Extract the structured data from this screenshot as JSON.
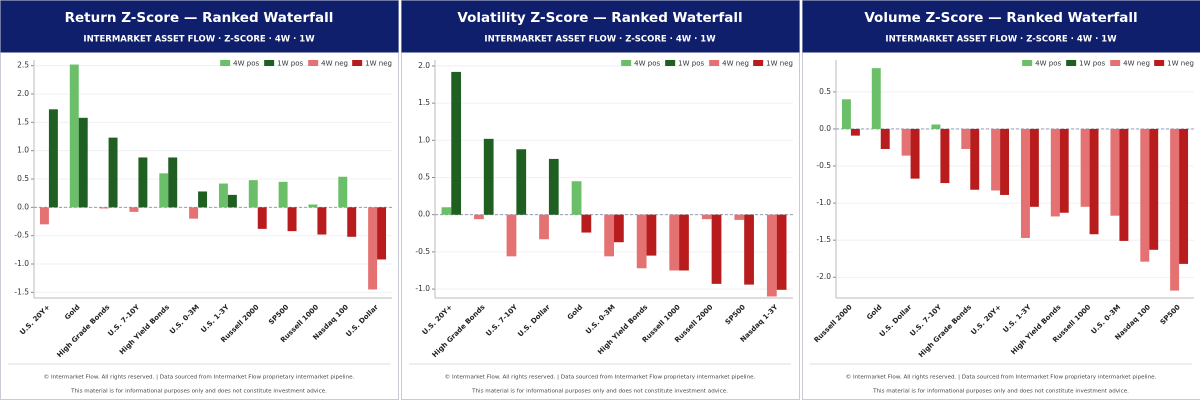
{
  "chart_data": [
    {
      "type": "bar",
      "title": "Return Z-Score — Ranked Waterfall",
      "subtitle": "INTERMARKET ASSET FLOW  ·  Z-SCORE  ·  4W · 1W",
      "categories": [
        "U.S. 20Y+",
        "Gold",
        "High Grade Bonds",
        "U.S. 7-10Y",
        "High Yield Bonds",
        "U.S. 0-3M",
        "U.S. 1-3Y",
        "Russell 2000",
        "SP500",
        "Russell 1000",
        "Nasdaq 100",
        "U.S. Dollar"
      ],
      "series": [
        {
          "values": [
            -0.3,
            2.52,
            -0.02,
            -0.08,
            0.6,
            -0.2,
            0.42,
            0.48,
            0.45,
            0.05,
            0.54,
            -1.45
          ]
        },
        {
          "values": [
            1.73,
            1.58,
            1.23,
            0.88,
            0.88,
            0.28,
            0.22,
            -0.38,
            -0.42,
            -0.48,
            -0.52,
            -0.92
          ]
        }
      ],
      "legend": [
        {
          "label": "4W pos",
          "color": "#6cbf69"
        },
        {
          "label": "1W pos",
          "color": "#1f5f22"
        },
        {
          "label": "4W neg",
          "color": "#e47272"
        },
        {
          "label": "1W neg",
          "color": "#b81c1c"
        }
      ],
      "ylim": [
        -1.6,
        2.6
      ],
      "yticks": [
        -1.5,
        {
          "value": -1,
          "label": "-1.0"
        },
        -0.5,
        {
          "value": 0,
          "label": "0.0"
        },
        0.5,
        {
          "value": 1,
          "label": "1.0"
        },
        1.5,
        {
          "value": 2,
          "label": "2.0"
        },
        2.5
      ],
      "grid": true
    },
    {
      "type": "bar",
      "title": "Volatility Z-Score — Ranked Waterfall",
      "subtitle": "INTERMARKET ASSET FLOW  ·  Z-SCORE  ·  4W · 1W",
      "categories": [
        "U.S. 20Y+",
        "High Grade Bonds",
        "U.S. 7-10Y",
        "U.S. Dollar",
        "Gold",
        "U.S. 0-3M",
        "High Yield Bonds",
        "Russell 1000",
        "Russell 2000",
        "SP500",
        "Nasdaq 1-3Y"
      ],
      "series": [
        {
          "values": [
            0.1,
            -0.06,
            -0.56,
            -0.33,
            0.45,
            -0.56,
            -0.72,
            -0.75,
            -0.06,
            -0.07,
            -1.1
          ]
        },
        {
          "values": [
            1.92,
            1.02,
            0.88,
            0.75,
            -0.24,
            -0.37,
            -0.55,
            -0.75,
            -0.93,
            -0.94,
            -1.01
          ]
        }
      ],
      "legend": [
        {
          "label": "4W pos",
          "color": "#6cbf69"
        },
        {
          "label": "1W pos",
          "color": "#1f5f22"
        },
        {
          "label": "4W neg",
          "color": "#e47272"
        },
        {
          "label": "1W neg",
          "color": "#b81c1c"
        }
      ],
      "ylim": [
        -1.12,
        2.08
      ],
      "yticks": [
        {
          "value": -1,
          "label": "-1.0"
        },
        -0.5,
        {
          "value": 0,
          "label": "0.0"
        },
        0.5,
        {
          "value": 1,
          "label": "1.0"
        },
        1.5,
        {
          "value": 2,
          "label": "2.0"
        }
      ],
      "grid": true
    },
    {
      "type": "bar",
      "title": "Volume Z-Score — Ranked Waterfall",
      "subtitle": "INTERMARKET ASSET FLOW  ·  Z-SCORE  ·  4W · 1W",
      "categories": [
        "Russell 2000",
        "Gold",
        "U.S. Dollar",
        "U.S. 7-10Y",
        "High Grade Bonds",
        "U.S. 20Y+",
        "U.S. 1-3Y",
        "High Yield Bonds",
        "Russell 1000",
        "U.S. 0-3M",
        "Nasdaq 100",
        "SP500"
      ],
      "series": [
        {
          "values": [
            0.4,
            0.82,
            -0.36,
            0.06,
            -0.27,
            -0.83,
            -1.47,
            -1.18,
            -1.05,
            -1.17,
            -1.79,
            -2.18
          ]
        },
        {
          "values": [
            -0.09,
            -0.27,
            -0.67,
            -0.73,
            -0.82,
            -0.89,
            -1.05,
            -1.13,
            -1.42,
            -1.51,
            -1.63,
            -1.82
          ]
        }
      ],
      "legend": [
        {
          "label": "4W pos",
          "color": "#6cbf69"
        },
        {
          "label": "1W pos",
          "color": "#1f5f22"
        },
        {
          "label": "4W neg",
          "color": "#e47272"
        },
        {
          "label": "1W neg",
          "color": "#b81c1c"
        }
      ],
      "ylim": [
        -2.28,
        0.93
      ],
      "yticks": [
        {
          "value": -2,
          "label": "-2.0"
        },
        -1.5,
        {
          "value": -1,
          "label": "-1.0"
        },
        -0.5,
        {
          "value": 0,
          "label": "0.0"
        },
        0.5
      ],
      "grid": true
    }
  ],
  "footer": {
    "line1": "© Intermarket Flow. All rights reserved.  |  Data sourced from Intermarket Flow proprietary intermarket pipeline.",
    "line2": "This material is for informational purposes only and does not constitute investment advice."
  }
}
